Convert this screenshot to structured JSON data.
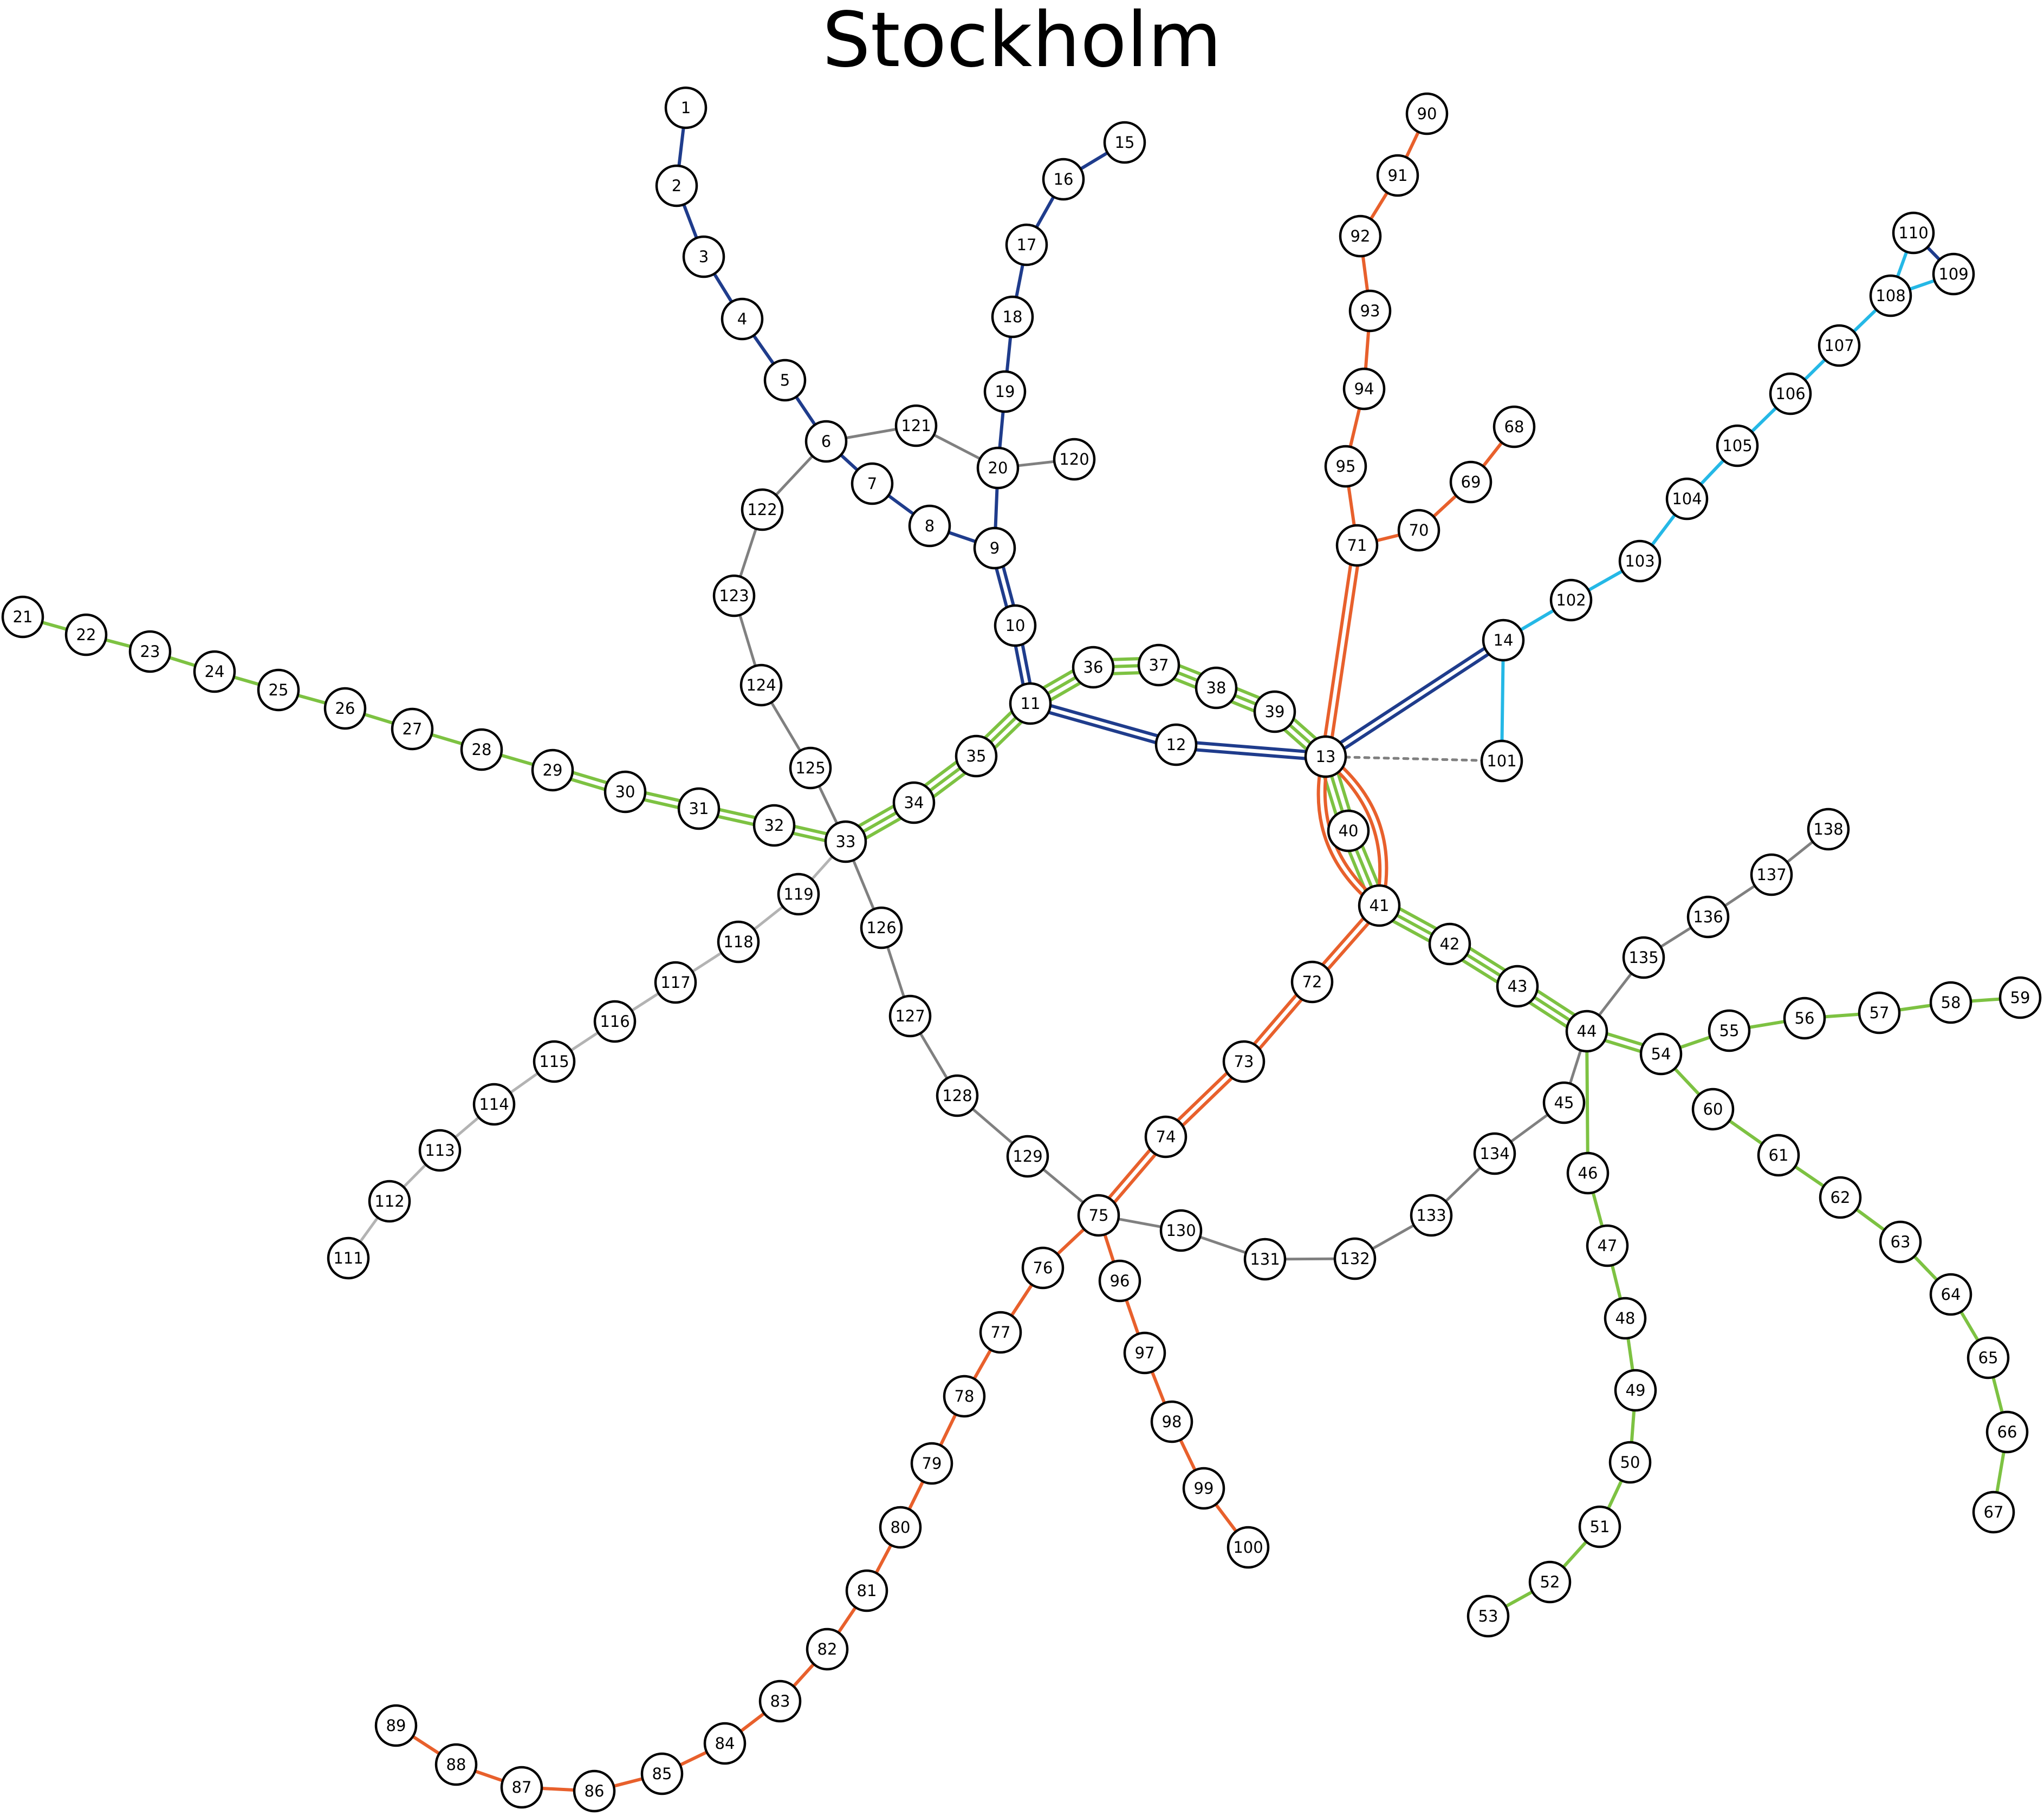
{
  "title": "Stockholm",
  "colors": {
    "dark_blue": "#1f3c8c",
    "green": "#7dc242",
    "orange": "#e8602c",
    "light_blue": "#25b8e6",
    "gray": "#808080",
    "light_gray": "#b3b3b3"
  },
  "stations": [
    "1",
    "2",
    "3",
    "4",
    "5",
    "6",
    "7",
    "8",
    "9",
    "10",
    "11",
    "12",
    "13",
    "14",
    "15",
    "16",
    "17",
    "18",
    "19",
    "20",
    "21",
    "22",
    "23",
    "24",
    "25",
    "26",
    "27",
    "28",
    "29",
    "30",
    "31",
    "32",
    "33",
    "34",
    "35",
    "36",
    "37",
    "38",
    "39",
    "40",
    "41",
    "42",
    "43",
    "44",
    "45",
    "46",
    "47",
    "48",
    "49",
    "50",
    "51",
    "52",
    "53",
    "54",
    "55",
    "56",
    "57",
    "58",
    "59",
    "60",
    "61",
    "62",
    "63",
    "64",
    "65",
    "66",
    "67",
    "68",
    "69",
    "70",
    "71",
    "72",
    "73",
    "74",
    "75",
    "76",
    "77",
    "78",
    "79",
    "80",
    "81",
    "82",
    "83",
    "84",
    "85",
    "86",
    "87",
    "88",
    "89",
    "90",
    "91",
    "92",
    "93",
    "94",
    "95",
    "96",
    "97",
    "98",
    "99",
    "100",
    "101",
    "102",
    "103",
    "104",
    "105",
    "106",
    "107",
    "108",
    "109",
    "110",
    "111",
    "112",
    "113",
    "114",
    "115",
    "116",
    "117",
    "118",
    "119",
    "120",
    "121",
    "122",
    "123",
    "124",
    "125",
    "126",
    "127",
    "128",
    "129",
    "130",
    "131",
    "132",
    "133",
    "134",
    "135",
    "136",
    "137",
    "138"
  ],
  "connections": [
    {
      "from": "1",
      "to": "2",
      "color": "dark_blue",
      "tracks": 1
    },
    {
      "from": "2",
      "to": "3",
      "color": "dark_blue",
      "tracks": 1
    },
    {
      "from": "3",
      "to": "4",
      "color": "dark_blue",
      "tracks": 1
    },
    {
      "from": "4",
      "to": "5",
      "color": "dark_blue",
      "tracks": 1
    },
    {
      "from": "5",
      "to": "6",
      "color": "dark_blue",
      "tracks": 1
    },
    {
      "from": "6",
      "to": "7",
      "color": "dark_blue",
      "tracks": 1
    },
    {
      "from": "7",
      "to": "8",
      "color": "dark_blue",
      "tracks": 1
    },
    {
      "from": "8",
      "to": "9",
      "color": "dark_blue",
      "tracks": 1
    },
    {
      "from": "15",
      "to": "16",
      "color": "dark_blue",
      "tracks": 1
    },
    {
      "from": "16",
      "to": "17",
      "color": "dark_blue",
      "tracks": 1
    },
    {
      "from": "17",
      "to": "18",
      "color": "dark_blue",
      "tracks": 1
    },
    {
      "from": "18",
      "to": "19",
      "color": "dark_blue",
      "tracks": 1
    },
    {
      "from": "19",
      "to": "20",
      "color": "dark_blue",
      "tracks": 1
    },
    {
      "from": "20",
      "to": "9",
      "color": "dark_blue",
      "tracks": 1
    },
    {
      "from": "9",
      "to": "10",
      "color": "dark_blue",
      "tracks": 2
    },
    {
      "from": "10",
      "to": "11",
      "color": "dark_blue",
      "tracks": 2
    },
    {
      "from": "11",
      "to": "12",
      "color": "dark_blue",
      "tracks": 2
    },
    {
      "from": "12",
      "to": "13",
      "color": "dark_blue",
      "tracks": 2
    },
    {
      "from": "13",
      "to": "14",
      "color": "dark_blue",
      "tracks": 2
    },
    {
      "from": "21",
      "to": "22",
      "color": "green",
      "tracks": 1
    },
    {
      "from": "22",
      "to": "23",
      "color": "green",
      "tracks": 1
    },
    {
      "from": "23",
      "to": "24",
      "color": "green",
      "tracks": 1
    },
    {
      "from": "24",
      "to": "25",
      "color": "green",
      "tracks": 1
    },
    {
      "from": "25",
      "to": "26",
      "color": "green",
      "tracks": 1
    },
    {
      "from": "26",
      "to": "27",
      "color": "green",
      "tracks": 1
    },
    {
      "from": "27",
      "to": "28",
      "color": "green",
      "tracks": 1
    },
    {
      "from": "28",
      "to": "29",
      "color": "green",
      "tracks": 1
    },
    {
      "from": "29",
      "to": "30",
      "color": "green",
      "tracks": 2
    },
    {
      "from": "30",
      "to": "31",
      "color": "green",
      "tracks": 2
    },
    {
      "from": "31",
      "to": "32",
      "color": "green",
      "tracks": 2
    },
    {
      "from": "32",
      "to": "33",
      "color": "green",
      "tracks": 2
    },
    {
      "from": "33",
      "to": "34",
      "color": "green",
      "tracks": 3
    },
    {
      "from": "34",
      "to": "35",
      "color": "green",
      "tracks": 3
    },
    {
      "from": "35",
      "to": "11",
      "color": "green",
      "tracks": 3
    },
    {
      "from": "11",
      "to": "36",
      "color": "green",
      "tracks": 3
    },
    {
      "from": "36",
      "to": "37",
      "color": "green",
      "tracks": 3
    },
    {
      "from": "37",
      "to": "38",
      "color": "green",
      "tracks": 3
    },
    {
      "from": "38",
      "to": "39",
      "color": "green",
      "tracks": 3
    },
    {
      "from": "39",
      "to": "13",
      "color": "green",
      "tracks": 3
    },
    {
      "from": "13",
      "to": "40",
      "color": "green",
      "tracks": 3
    },
    {
      "from": "40",
      "to": "41",
      "color": "green",
      "tracks": 3
    },
    {
      "from": "41",
      "to": "42",
      "color": "green",
      "tracks": 3
    },
    {
      "from": "42",
      "to": "43",
      "color": "green",
      "tracks": 3
    },
    {
      "from": "43",
      "to": "44",
      "color": "green",
      "tracks": 3
    },
    {
      "from": "44",
      "to": "54",
      "color": "green",
      "tracks": 2
    },
    {
      "from": "44",
      "to": "46",
      "color": "green",
      "tracks": 1
    },
    {
      "from": "46",
      "to": "47",
      "color": "green",
      "tracks": 1
    },
    {
      "from": "47",
      "to": "48",
      "color": "green",
      "tracks": 1
    },
    {
      "from": "48",
      "to": "49",
      "color": "green",
      "tracks": 1
    },
    {
      "from": "49",
      "to": "50",
      "color": "green",
      "tracks": 1
    },
    {
      "from": "50",
      "to": "51",
      "color": "green",
      "tracks": 1
    },
    {
      "from": "51",
      "to": "52",
      "color": "green",
      "tracks": 1
    },
    {
      "from": "52",
      "to": "53",
      "color": "green",
      "tracks": 1
    },
    {
      "from": "54",
      "to": "55",
      "color": "green",
      "tracks": 1
    },
    {
      "from": "55",
      "to": "56",
      "color": "green",
      "tracks": 1
    },
    {
      "from": "56",
      "to": "57",
      "color": "green",
      "tracks": 1
    },
    {
      "from": "57",
      "to": "58",
      "color": "green",
      "tracks": 1
    },
    {
      "from": "58",
      "to": "59",
      "color": "green",
      "tracks": 1
    },
    {
      "from": "54",
      "to": "60",
      "color": "green",
      "tracks": 1
    },
    {
      "from": "60",
      "to": "61",
      "color": "green",
      "tracks": 1
    },
    {
      "from": "61",
      "to": "62",
      "color": "green",
      "tracks": 1
    },
    {
      "from": "62",
      "to": "63",
      "color": "green",
      "tracks": 1
    },
    {
      "from": "63",
      "to": "64",
      "color": "green",
      "tracks": 1
    },
    {
      "from": "64",
      "to": "65",
      "color": "green",
      "tracks": 1
    },
    {
      "from": "65",
      "to": "66",
      "color": "green",
      "tracks": 1
    },
    {
      "from": "66",
      "to": "67",
      "color": "green",
      "tracks": 1
    },
    {
      "from": "68",
      "to": "69",
      "color": "orange",
      "tracks": 1
    },
    {
      "from": "69",
      "to": "70",
      "color": "orange",
      "tracks": 1
    },
    {
      "from": "70",
      "to": "71",
      "color": "orange",
      "tracks": 1
    },
    {
      "from": "90",
      "to": "91",
      "color": "orange",
      "tracks": 1
    },
    {
      "from": "91",
      "to": "92",
      "color": "orange",
      "tracks": 1
    },
    {
      "from": "92",
      "to": "93",
      "color": "orange",
      "tracks": 1
    },
    {
      "from": "93",
      "to": "94",
      "color": "orange",
      "tracks": 1
    },
    {
      "from": "94",
      "to": "95",
      "color": "orange",
      "tracks": 1
    },
    {
      "from": "95",
      "to": "71",
      "color": "orange",
      "tracks": 1
    },
    {
      "from": "71",
      "to": "13",
      "color": "orange",
      "tracks": 2
    },
    {
      "from": "13",
      "to": "41",
      "color": "orange",
      "tracks": 2,
      "curve": true
    },
    {
      "from": "41",
      "to": "72",
      "color": "orange",
      "tracks": 2
    },
    {
      "from": "72",
      "to": "73",
      "color": "orange",
      "tracks": 2
    },
    {
      "from": "73",
      "to": "74",
      "color": "orange",
      "tracks": 2
    },
    {
      "from": "74",
      "to": "75",
      "color": "orange",
      "tracks": 2
    },
    {
      "from": "75",
      "to": "76",
      "color": "orange",
      "tracks": 1
    },
    {
      "from": "76",
      "to": "77",
      "color": "orange",
      "tracks": 1
    },
    {
      "from": "77",
      "to": "78",
      "color": "orange",
      "tracks": 1
    },
    {
      "from": "78",
      "to": "79",
      "color": "orange",
      "tracks": 1
    },
    {
      "from": "79",
      "to": "80",
      "color": "orange",
      "tracks": 1
    },
    {
      "from": "80",
      "to": "81",
      "color": "orange",
      "tracks": 1
    },
    {
      "from": "81",
      "to": "82",
      "color": "orange",
      "tracks": 1
    },
    {
      "from": "82",
      "to": "83",
      "color": "orange",
      "tracks": 1
    },
    {
      "from": "83",
      "to": "84",
      "color": "orange",
      "tracks": 1
    },
    {
      "from": "84",
      "to": "85",
      "color": "orange",
      "tracks": 1
    },
    {
      "from": "85",
      "to": "86",
      "color": "orange",
      "tracks": 1
    },
    {
      "from": "86",
      "to": "87",
      "color": "orange",
      "tracks": 1
    },
    {
      "from": "87",
      "to": "88",
      "color": "orange",
      "tracks": 1
    },
    {
      "from": "88",
      "to": "89",
      "color": "orange",
      "tracks": 1
    },
    {
      "from": "75",
      "to": "96",
      "color": "orange",
      "tracks": 1
    },
    {
      "from": "96",
      "to": "97",
      "color": "orange",
      "tracks": 1
    },
    {
      "from": "97",
      "to": "98",
      "color": "orange",
      "tracks": 1
    },
    {
      "from": "98",
      "to": "99",
      "color": "orange",
      "tracks": 1
    },
    {
      "from": "99",
      "to": "100",
      "color": "orange",
      "tracks": 1
    },
    {
      "from": "14",
      "to": "102",
      "color": "light_blue",
      "tracks": 1
    },
    {
      "from": "14",
      "to": "101",
      "color": "light_blue",
      "tracks": 1
    },
    {
      "from": "102",
      "to": "103",
      "color": "light_blue",
      "tracks": 1
    },
    {
      "from": "103",
      "to": "104",
      "color": "light_blue",
      "tracks": 1
    },
    {
      "from": "104",
      "to": "105",
      "color": "light_blue",
      "tracks": 1
    },
    {
      "from": "105",
      "to": "106",
      "color": "light_blue",
      "tracks": 1
    },
    {
      "from": "106",
      "to": "107",
      "color": "light_blue",
      "tracks": 1
    },
    {
      "from": "107",
      "to": "108",
      "color": "light_blue",
      "tracks": 1
    },
    {
      "from": "108",
      "to": "109",
      "color": "light_blue",
      "tracks": 1
    },
    {
      "from": "108",
      "to": "110",
      "color": "light_blue",
      "tracks": 1
    },
    {
      "from": "109",
      "to": "110",
      "color": "dark_blue",
      "tracks": 1
    },
    {
      "from": "13",
      "to": "101",
      "color": "gray",
      "tracks": 1,
      "dashed": true
    },
    {
      "from": "6",
      "to": "121",
      "color": "gray",
      "tracks": 1
    },
    {
      "from": "121",
      "to": "20",
      "color": "gray",
      "tracks": 1
    },
    {
      "from": "20",
      "to": "120",
      "color": "gray",
      "tracks": 1
    },
    {
      "from": "6",
      "to": "122",
      "color": "gray",
      "tracks": 1
    },
    {
      "from": "122",
      "to": "123",
      "color": "gray",
      "tracks": 1
    },
    {
      "from": "123",
      "to": "124",
      "color": "gray",
      "tracks": 1
    },
    {
      "from": "124",
      "to": "125",
      "color": "gray",
      "tracks": 1
    },
    {
      "from": "125",
      "to": "33",
      "color": "gray",
      "tracks": 1
    },
    {
      "from": "33",
      "to": "126",
      "color": "gray",
      "tracks": 1
    },
    {
      "from": "126",
      "to": "127",
      "color": "gray",
      "tracks": 1
    },
    {
      "from": "127",
      "to": "128",
      "color": "gray",
      "tracks": 1
    },
    {
      "from": "128",
      "to": "129",
      "color": "gray",
      "tracks": 1
    },
    {
      "from": "129",
      "to": "75",
      "color": "gray",
      "tracks": 1
    },
    {
      "from": "75",
      "to": "130",
      "color": "gray",
      "tracks": 1
    },
    {
      "from": "130",
      "to": "131",
      "color": "gray",
      "tracks": 1
    },
    {
      "from": "131",
      "to": "132",
      "color": "gray",
      "tracks": 1
    },
    {
      "from": "132",
      "to": "133",
      "color": "gray",
      "tracks": 1
    },
    {
      "from": "133",
      "to": "134",
      "color": "gray",
      "tracks": 1
    },
    {
      "from": "134",
      "to": "45",
      "color": "gray",
      "tracks": 1
    },
    {
      "from": "45",
      "to": "44",
      "color": "gray",
      "tracks": 1
    },
    {
      "from": "44",
      "to": "135",
      "color": "gray",
      "tracks": 1
    },
    {
      "from": "135",
      "to": "136",
      "color": "gray",
      "tracks": 1
    },
    {
      "from": "136",
      "to": "137",
      "color": "gray",
      "tracks": 1
    },
    {
      "from": "137",
      "to": "138",
      "color": "gray",
      "tracks": 1
    },
    {
      "from": "33",
      "to": "119",
      "color": "light_gray",
      "tracks": 1
    },
    {
      "from": "119",
      "to": "118",
      "color": "light_gray",
      "tracks": 1
    },
    {
      "from": "118",
      "to": "117",
      "color": "light_gray",
      "tracks": 1
    },
    {
      "from": "117",
      "to": "116",
      "color": "light_gray",
      "tracks": 1
    },
    {
      "from": "116",
      "to": "115",
      "color": "light_gray",
      "tracks": 1
    },
    {
      "from": "115",
      "to": "114",
      "color": "light_gray",
      "tracks": 1
    },
    {
      "from": "114",
      "to": "113",
      "color": "light_gray",
      "tracks": 1
    },
    {
      "from": "113",
      "to": "112",
      "color": "light_gray",
      "tracks": 1
    },
    {
      "from": "112",
      "to": "111",
      "color": "light_gray",
      "tracks": 1
    }
  ]
}
